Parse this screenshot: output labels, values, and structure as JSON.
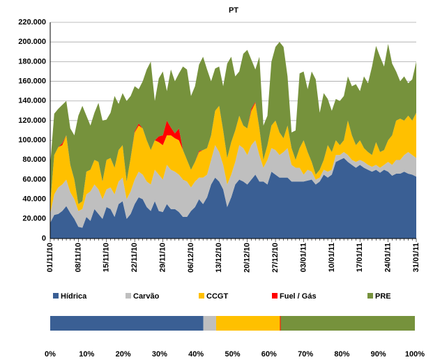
{
  "chart_data": [
    {
      "type": "area",
      "stacked": true,
      "title": "PT",
      "categories": [
        "01/11/10",
        null,
        null,
        null,
        null,
        null,
        null,
        "08/11/10",
        null,
        null,
        null,
        null,
        null,
        null,
        "15/11/10",
        null,
        null,
        null,
        null,
        null,
        null,
        "22/11/10",
        null,
        null,
        null,
        null,
        null,
        null,
        "29/11/10",
        null,
        null,
        null,
        null,
        null,
        null,
        "06/12/10",
        null,
        null,
        null,
        null,
        null,
        null,
        "13/12/10",
        null,
        null,
        null,
        null,
        null,
        null,
        "20/12/10",
        null,
        null,
        null,
        null,
        null,
        null,
        "27/12/10",
        null,
        null,
        null,
        null,
        null,
        null,
        "03/01/11",
        null,
        null,
        null,
        null,
        null,
        null,
        "10/01/11",
        null,
        null,
        null,
        null,
        null,
        null,
        "17/01/11",
        null,
        null,
        null,
        null,
        null,
        null,
        "24/01/11",
        null,
        null,
        null,
        null,
        null,
        null,
        "31/01/11"
      ],
      "series": [
        {
          "name": "Hídrica",
          "color": "#3a5f94",
          "values": [
            16000,
            24000,
            25000,
            28000,
            33000,
            26000,
            20000,
            12000,
            11000,
            22000,
            18000,
            30000,
            25000,
            20000,
            32000,
            30000,
            22000,
            35000,
            38000,
            20000,
            25000,
            35000,
            42000,
            40000,
            32000,
            28000,
            38000,
            28000,
            27000,
            35000,
            30000,
            30000,
            27000,
            22000,
            22000,
            28000,
            32000,
            40000,
            35000,
            42000,
            55000,
            62000,
            58000,
            50000,
            32000,
            42000,
            55000,
            60000,
            58000,
            55000,
            60000,
            65000,
            58000,
            58000,
            55000,
            68000,
            65000,
            62000,
            62000,
            62000,
            58000,
            58000,
            58000,
            58000,
            59000,
            60000,
            55000,
            58000,
            65000,
            62000,
            65000,
            78000,
            80000,
            82000,
            78000,
            75000,
            72000,
            75000,
            72000,
            70000,
            68000,
            70000,
            67000,
            70000,
            68000,
            64000,
            66000,
            66000,
            68000,
            66000,
            65000,
            63000
          ]
        },
        {
          "name": "Carvão",
          "color": "#bfbfbf",
          "values": [
            9000,
            21000,
            27000,
            27000,
            27000,
            21000,
            20000,
            16000,
            19000,
            23000,
            30000,
            25000,
            25000,
            20000,
            18000,
            22000,
            23000,
            23000,
            24000,
            20000,
            23000,
            25000,
            26000,
            25000,
            26000,
            27000,
            32000,
            37000,
            33000,
            40000,
            40000,
            38000,
            38000,
            38000,
            36000,
            24000,
            26000,
            22000,
            27000,
            23000,
            25000,
            33000,
            30000,
            25000,
            23000,
            23000,
            23000,
            35000,
            34000,
            30000,
            35000,
            35000,
            27000,
            14000,
            25000,
            24000,
            25000,
            23000,
            26000,
            30000,
            17000,
            14000,
            14000,
            7000,
            11000,
            8000,
            5000,
            4000,
            5000,
            6000,
            5000,
            7000,
            5000,
            6000,
            7000,
            5000,
            6000,
            5000,
            6000,
            5000,
            5000,
            5000,
            5000,
            5000,
            10000,
            11000,
            14000,
            14000,
            17000,
            22000,
            20000,
            19000
          ]
        },
        {
          "name": "CCGT",
          "color": "#ffc000",
          "values": [
            10000,
            40000,
            41000,
            40000,
            45000,
            28000,
            20000,
            7000,
            8000,
            23000,
            22000,
            25000,
            28000,
            18000,
            30000,
            30000,
            27000,
            32000,
            33000,
            18000,
            34000,
            48000,
            47000,
            47000,
            42000,
            35000,
            30000,
            33000,
            35000,
            30000,
            35000,
            34000,
            35000,
            30000,
            22000,
            18000,
            20000,
            26000,
            28000,
            27000,
            25000,
            35000,
            47000,
            35000,
            27000,
            33000,
            32000,
            30000,
            23000,
            27000,
            35000,
            38000,
            27000,
            8000,
            15000,
            23000,
            30000,
            23000,
            14000,
            23000,
            17000,
            8000,
            20000,
            35000,
            18000,
            10000,
            5000,
            8000,
            10000,
            27000,
            18000,
            15000,
            10000,
            12000,
            35000,
            25000,
            17000,
            20000,
            14000,
            13000,
            12000,
            23000,
            16000,
            15000,
            22000,
            30000,
            40000,
            42000,
            35000,
            37000,
            35000,
            46000
          ]
        },
        {
          "name": "Fuel / Gás",
          "color": "#ff0000",
          "values": [
            0,
            0,
            0,
            2000,
            0,
            0,
            0,
            0,
            0,
            0,
            0,
            0,
            0,
            0,
            0,
            0,
            0,
            0,
            0,
            0,
            0,
            1000,
            2000,
            0,
            0,
            0,
            0,
            6000,
            10000,
            15000,
            8000,
            5000,
            12000,
            0,
            0,
            0,
            0,
            1000,
            0,
            0,
            0,
            0,
            0,
            0,
            0,
            0,
            0,
            0,
            0,
            0,
            2000,
            1000,
            0,
            0,
            0,
            0,
            0,
            0,
            0,
            0,
            0,
            0,
            0,
            0,
            0,
            0,
            0,
            0,
            0,
            0,
            0,
            0,
            0,
            0,
            0,
            0,
            0,
            0,
            0,
            0,
            0,
            0,
            0,
            0,
            0,
            0,
            0,
            0,
            0,
            0,
            0,
            0
          ]
        },
        {
          "name": "PRE",
          "color": "#76923c",
          "values": [
            40000,
            42000,
            39000,
            39000,
            35000,
            37000,
            45000,
            90000,
            97000,
            57000,
            45000,
            48000,
            60000,
            62000,
            41000,
            46000,
            73000,
            47000,
            53000,
            82000,
            63000,
            46000,
            35000,
            48000,
            72000,
            90000,
            40000,
            59000,
            65000,
            30000,
            59000,
            53000,
            56000,
            85000,
            92000,
            75000,
            77000,
            88000,
            95000,
            80000,
            55000,
            43000,
            40000,
            45000,
            96000,
            87000,
            55000,
            45000,
            73000,
            80000,
            50000,
            33000,
            73000,
            35000,
            30000,
            65000,
            75000,
            92000,
            93000,
            50000,
            16000,
            30000,
            76000,
            70000,
            64000,
            92000,
            97000,
            58000,
            68000,
            47000,
            42000,
            42000,
            45000,
            45000,
            45000,
            50000,
            62000,
            50000,
            73000,
            70000,
            90000,
            98000,
            97000,
            85000,
            98000,
            73000,
            50000,
            38000,
            45000,
            33000,
            42000,
            52000
          ]
        }
      ],
      "ylim": [
        0,
        220000
      ],
      "yticks": [
        0,
        {
          "value": 20000,
          "label": "20.000"
        },
        {
          "value": 40000,
          "label": "40.000"
        },
        {
          "value": 60000,
          "label": "60.000"
        },
        {
          "value": 80000,
          "label": "80.000"
        },
        {
          "value": 100000,
          "label": "100.000"
        },
        {
          "value": 120000,
          "label": "120.000"
        },
        {
          "value": 140000,
          "label": "140.000"
        },
        {
          "value": 160000,
          "label": "160.000"
        },
        {
          "value": 180000,
          "label": "180.000"
        },
        {
          "value": 200000,
          "label": "200.000"
        },
        {
          "value": 220000,
          "label": "220.000"
        }
      ],
      "grid": true,
      "legend": "bottom"
    },
    {
      "type": "hbar",
      "stacked": true,
      "series": [
        {
          "color": "#3a5f94",
          "values": [
            42
          ]
        },
        {
          "color": "#bfbfbf",
          "values": [
            3.5
          ]
        },
        {
          "color": "#ffc000",
          "values": [
            17.5
          ]
        },
        {
          "color": "#ff0000",
          "values": [
            0.2
          ]
        },
        {
          "color": "#76923c",
          "values": [
            36.8
          ]
        }
      ],
      "xlim": [
        0,
        100
      ],
      "xticks": [
        {
          "value": 0,
          "label": "0%"
        },
        {
          "value": 10,
          "label": "10%"
        },
        {
          "value": 20,
          "label": "20%"
        },
        {
          "value": 30,
          "label": "30%"
        },
        {
          "value": 40,
          "label": "40%"
        },
        {
          "value": 50,
          "label": "50%"
        },
        {
          "value": 60,
          "label": "60%"
        },
        {
          "value": 70,
          "label": "70%"
        },
        {
          "value": 80,
          "label": "80%"
        },
        {
          "value": 90,
          "label": "90%"
        },
        {
          "value": 100,
          "label": "100%"
        }
      ]
    }
  ]
}
